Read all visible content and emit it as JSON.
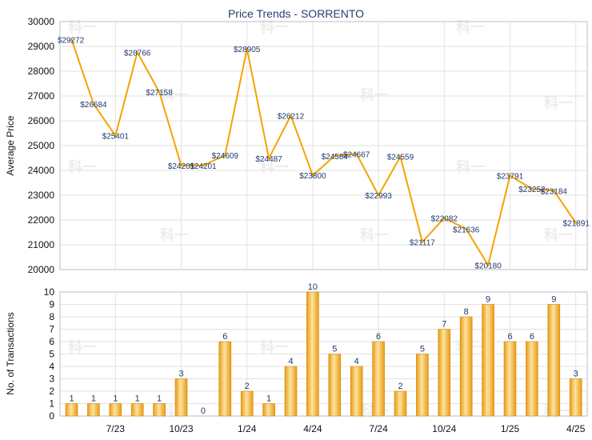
{
  "chart_data": [
    {
      "type": "line",
      "title": "Price Trends - SORRENTO",
      "xlabel": "",
      "ylabel": "Average Price",
      "ylim": [
        20000,
        30000
      ],
      "yticks": [
        20000,
        21000,
        22000,
        23000,
        24000,
        25000,
        26000,
        27000,
        28000,
        29000,
        30000
      ],
      "x_tick_labels": [
        "7/23",
        "10/23",
        "1/24",
        "4/24",
        "7/24",
        "10/24",
        "1/25",
        "4/25"
      ],
      "grid": true,
      "color": "#f5a300",
      "point_labels": [
        "$29272",
        "$26684",
        "$25401",
        "$28766",
        "$27158",
        "$24201",
        "$24201",
        "$24609",
        "$28905",
        "$24487",
        "$26212",
        "$23800",
        "$24584",
        "$24667",
        "$22993",
        "$24559",
        "$21117",
        "$22082",
        "$21636",
        "$20180",
        "$23791",
        "$23252",
        "$23184",
        "$21891"
      ],
      "values": [
        29272,
        26684,
        25401,
        28766,
        27158,
        24201,
        24201,
        24609,
        28905,
        24487,
        26212,
        23800,
        24584,
        24667,
        22993,
        24559,
        21117,
        22082,
        21636,
        20180,
        23791,
        23252,
        23184,
        21891
      ]
    },
    {
      "type": "bar",
      "title": "",
      "xlabel": "",
      "ylabel": "No. of Transactions",
      "ylim": [
        0,
        10
      ],
      "yticks": [
        0,
        1,
        2,
        3,
        4,
        5,
        6,
        7,
        8,
        9,
        10
      ],
      "x_tick_labels": [
        "7/23",
        "10/23",
        "1/24",
        "4/24",
        "7/24",
        "10/24",
        "1/25",
        "4/25"
      ],
      "grid": true,
      "color": "#f2b02e",
      "values": [
        1,
        1,
        1,
        1,
        1,
        3,
        0,
        6,
        2,
        1,
        4,
        10,
        5,
        4,
        6,
        2,
        5,
        7,
        8,
        9,
        6,
        6,
        9,
        3
      ]
    }
  ]
}
